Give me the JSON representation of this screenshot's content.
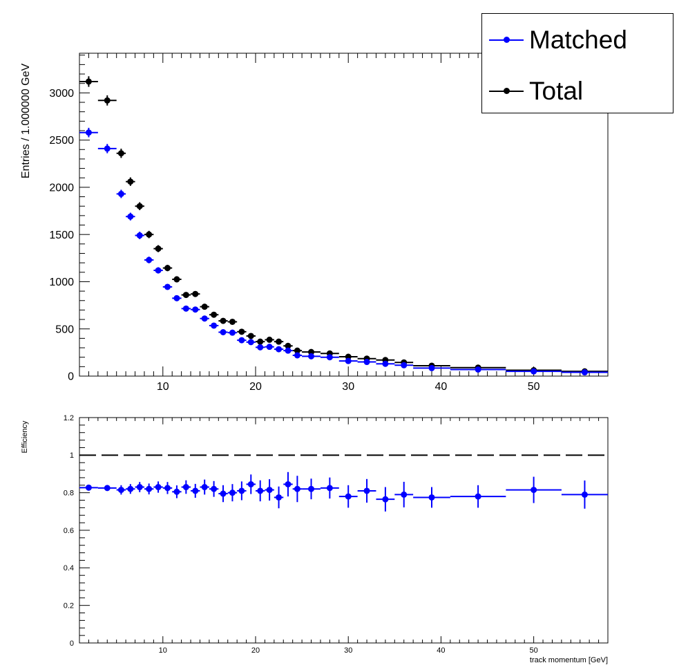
{
  "chart_data": [
    {
      "type": "scatter",
      "panel": "top",
      "title": "",
      "xlabel": "",
      "ylabel": "Entries / 1.000000 GeV",
      "xlim": [
        1,
        58
      ],
      "ylim": [
        0,
        3420
      ],
      "x_ticks": [
        10,
        20,
        30,
        40,
        50
      ],
      "y_ticks": [
        0,
        500,
        1000,
        1500,
        2000,
        2500,
        3000
      ],
      "legend_position": "top-right",
      "colors": {
        "Matched": "#0000ff",
        "Total": "#000000"
      },
      "series": [
        {
          "name": "Matched",
          "points": [
            {
              "x": 2,
              "xerr": 1,
              "y": 2580,
              "yerr": 50
            },
            {
              "x": 4,
              "xerr": 1,
              "y": 2410,
              "yerr": 49
            },
            {
              "x": 5.5,
              "xerr": 0.5,
              "y": 1930,
              "yerr": 44
            },
            {
              "x": 6.5,
              "xerr": 0.5,
              "y": 1690,
              "yerr": 41
            },
            {
              "x": 7.5,
              "xerr": 0.5,
              "y": 1490,
              "yerr": 39
            },
            {
              "x": 8.5,
              "xerr": 0.5,
              "y": 1230,
              "yerr": 35
            },
            {
              "x": 9.5,
              "xerr": 0.5,
              "y": 1120,
              "yerr": 33
            },
            {
              "x": 10.5,
              "xerr": 0.5,
              "y": 945,
              "yerr": 31
            },
            {
              "x": 11.5,
              "xerr": 0.5,
              "y": 825,
              "yerr": 29
            },
            {
              "x": 12.5,
              "xerr": 0.5,
              "y": 715,
              "yerr": 27
            },
            {
              "x": 13.5,
              "xerr": 0.5,
              "y": 705,
              "yerr": 27
            },
            {
              "x": 14.5,
              "xerr": 0.5,
              "y": 610,
              "yerr": 25
            },
            {
              "x": 15.5,
              "xerr": 0.5,
              "y": 535,
              "yerr": 23
            },
            {
              "x": 16.5,
              "xerr": 0.5,
              "y": 465,
              "yerr": 22
            },
            {
              "x": 17.5,
              "xerr": 0.5,
              "y": 460,
              "yerr": 21
            },
            {
              "x": 18.5,
              "xerr": 0.5,
              "y": 380,
              "yerr": 19
            },
            {
              "x": 19.5,
              "xerr": 0.5,
              "y": 360,
              "yerr": 19
            },
            {
              "x": 20.5,
              "xerr": 0.5,
              "y": 305,
              "yerr": 17
            },
            {
              "x": 21.5,
              "xerr": 0.5,
              "y": 310,
              "yerr": 18
            },
            {
              "x": 22.5,
              "xerr": 0.5,
              "y": 285,
              "yerr": 17
            },
            {
              "x": 23.5,
              "xerr": 0.5,
              "y": 270,
              "yerr": 16
            },
            {
              "x": 24.5,
              "xerr": 0.5,
              "y": 220,
              "yerr": 15
            },
            {
              "x": 26,
              "xerr": 1,
              "y": 210,
              "yerr": 14
            },
            {
              "x": 28,
              "xerr": 1,
              "y": 200,
              "yerr": 14
            },
            {
              "x": 30,
              "xerr": 1,
              "y": 160,
              "yerr": 13
            },
            {
              "x": 32,
              "xerr": 1,
              "y": 150,
              "yerr": 12
            },
            {
              "x": 34,
              "xerr": 1,
              "y": 130,
              "yerr": 11
            },
            {
              "x": 36,
              "xerr": 1,
              "y": 115,
              "yerr": 11
            },
            {
              "x": 39,
              "xerr": 2,
              "y": 85,
              "yerr": 7
            },
            {
              "x": 44,
              "xerr": 3,
              "y": 70,
              "yerr": 5
            },
            {
              "x": 50,
              "xerr": 3,
              "y": 50,
              "yerr": 4
            },
            {
              "x": 55.5,
              "xerr": 2.5,
              "y": 40,
              "yerr": 4
            }
          ]
        },
        {
          "name": "Total",
          "points": [
            {
              "x": 2,
              "xerr": 1,
              "y": 3120,
              "yerr": 56
            },
            {
              "x": 4,
              "xerr": 1,
              "y": 2920,
              "yerr": 54
            },
            {
              "x": 5.5,
              "xerr": 0.5,
              "y": 2360,
              "yerr": 49
            },
            {
              "x": 6.5,
              "xerr": 0.5,
              "y": 2060,
              "yerr": 45
            },
            {
              "x": 7.5,
              "xerr": 0.5,
              "y": 1800,
              "yerr": 42
            },
            {
              "x": 8.5,
              "xerr": 0.5,
              "y": 1500,
              "yerr": 39
            },
            {
              "x": 9.5,
              "xerr": 0.5,
              "y": 1350,
              "yerr": 37
            },
            {
              "x": 10.5,
              "xerr": 0.5,
              "y": 1145,
              "yerr": 34
            },
            {
              "x": 11.5,
              "xerr": 0.5,
              "y": 1025,
              "yerr": 32
            },
            {
              "x": 12.5,
              "xerr": 0.5,
              "y": 860,
              "yerr": 29
            },
            {
              "x": 13.5,
              "xerr": 0.5,
              "y": 870,
              "yerr": 29
            },
            {
              "x": 14.5,
              "xerr": 0.5,
              "y": 735,
              "yerr": 27
            },
            {
              "x": 15.5,
              "xerr": 0.5,
              "y": 650,
              "yerr": 25
            },
            {
              "x": 16.5,
              "xerr": 0.5,
              "y": 585,
              "yerr": 24
            },
            {
              "x": 17.5,
              "xerr": 0.5,
              "y": 575,
              "yerr": 24
            },
            {
              "x": 18.5,
              "xerr": 0.5,
              "y": 470,
              "yerr": 22
            },
            {
              "x": 19.5,
              "xerr": 0.5,
              "y": 425,
              "yerr": 21
            },
            {
              "x": 20.5,
              "xerr": 0.5,
              "y": 365,
              "yerr": 19
            },
            {
              "x": 21.5,
              "xerr": 0.5,
              "y": 385,
              "yerr": 20
            },
            {
              "x": 22.5,
              "xerr": 0.5,
              "y": 365,
              "yerr": 19
            },
            {
              "x": 23.5,
              "xerr": 0.5,
              "y": 320,
              "yerr": 18
            },
            {
              "x": 24.5,
              "xerr": 0.5,
              "y": 270,
              "yerr": 16
            },
            {
              "x": 26,
              "xerr": 1,
              "y": 255,
              "yerr": 16
            },
            {
              "x": 28,
              "xerr": 1,
              "y": 240,
              "yerr": 15
            },
            {
              "x": 30,
              "xerr": 1,
              "y": 205,
              "yerr": 14
            },
            {
              "x": 32,
              "xerr": 1,
              "y": 185,
              "yerr": 14
            },
            {
              "x": 34,
              "xerr": 1,
              "y": 170,
              "yerr": 13
            },
            {
              "x": 36,
              "xerr": 1,
              "y": 145,
              "yerr": 12
            },
            {
              "x": 39,
              "xerr": 2,
              "y": 110,
              "yerr": 7
            },
            {
              "x": 44,
              "xerr": 3,
              "y": 90,
              "yerr": 5
            },
            {
              "x": 50,
              "xerr": 3,
              "y": 62,
              "yerr": 5
            },
            {
              "x": 55.5,
              "xerr": 2.5,
              "y": 50,
              "yerr": 4
            }
          ]
        }
      ]
    },
    {
      "type": "scatter",
      "panel": "bottom",
      "title": "",
      "xlabel": "track momentum [GeV]",
      "ylabel": "Efficiency",
      "xlim": [
        1,
        58
      ],
      "ylim": [
        0,
        1.2
      ],
      "x_ticks": [
        10,
        20,
        30,
        40,
        50
      ],
      "y_ticks": [
        0,
        0.2,
        0.4,
        0.6,
        0.8,
        1,
        1.2
      ],
      "y_tick_labels": [
        "0",
        "0.2",
        "0.4",
        "0.6",
        "0.8",
        "1",
        "1.2"
      ],
      "reference_line": {
        "y": 1,
        "style": "dashed"
      },
      "colors": {
        "Efficiency": "#0000ff"
      },
      "series": [
        {
          "name": "",
          "points": [
            {
              "x": 2,
              "xerr": 1,
              "y": 0.827,
              "yerr": 0.012
            },
            {
              "x": 4,
              "xerr": 1,
              "y": 0.825,
              "yerr": 0.012
            },
            {
              "x": 5.5,
              "xerr": 0.5,
              "y": 0.815,
              "yerr": 0.025
            },
            {
              "x": 6.5,
              "xerr": 0.5,
              "y": 0.82,
              "yerr": 0.026
            },
            {
              "x": 7.5,
              "xerr": 0.5,
              "y": 0.83,
              "yerr": 0.027
            },
            {
              "x": 8.5,
              "xerr": 0.5,
              "y": 0.82,
              "yerr": 0.029
            },
            {
              "x": 9.5,
              "xerr": 0.5,
              "y": 0.83,
              "yerr": 0.03
            },
            {
              "x": 10.5,
              "xerr": 0.5,
              "y": 0.825,
              "yerr": 0.032
            },
            {
              "x": 11.5,
              "xerr": 0.5,
              "y": 0.805,
              "yerr": 0.034
            },
            {
              "x": 12.5,
              "xerr": 0.5,
              "y": 0.83,
              "yerr": 0.036
            },
            {
              "x": 13.5,
              "xerr": 0.5,
              "y": 0.81,
              "yerr": 0.037
            },
            {
              "x": 14.5,
              "xerr": 0.5,
              "y": 0.83,
              "yerr": 0.04
            },
            {
              "x": 15.5,
              "xerr": 0.5,
              "y": 0.82,
              "yerr": 0.042
            },
            {
              "x": 16.5,
              "xerr": 0.5,
              "y": 0.795,
              "yerr": 0.045
            },
            {
              "x": 17.5,
              "xerr": 0.5,
              "y": 0.8,
              "yerr": 0.046
            },
            {
              "x": 18.5,
              "xerr": 0.5,
              "y": 0.81,
              "yerr": 0.05
            },
            {
              "x": 19.5,
              "xerr": 0.5,
              "y": 0.845,
              "yerr": 0.052
            },
            {
              "x": 20.5,
              "xerr": 0.5,
              "y": 0.81,
              "yerr": 0.056
            },
            {
              "x": 21.5,
              "xerr": 0.5,
              "y": 0.815,
              "yerr": 0.057
            },
            {
              "x": 22.5,
              "xerr": 0.5,
              "y": 0.775,
              "yerr": 0.058
            },
            {
              "x": 23.5,
              "xerr": 0.5,
              "y": 0.845,
              "yerr": 0.065
            },
            {
              "x": 24.5,
              "xerr": 0.5,
              "y": 0.82,
              "yerr": 0.07
            },
            {
              "x": 26,
              "xerr": 1,
              "y": 0.82,
              "yerr": 0.055
            },
            {
              "x": 28,
              "xerr": 1,
              "y": 0.825,
              "yerr": 0.056
            },
            {
              "x": 30,
              "xerr": 1,
              "y": 0.78,
              "yerr": 0.06
            },
            {
              "x": 32,
              "xerr": 1,
              "y": 0.81,
              "yerr": 0.063
            },
            {
              "x": 34,
              "xerr": 1,
              "y": 0.765,
              "yerr": 0.065
            },
            {
              "x": 36,
              "xerr": 1,
              "y": 0.79,
              "yerr": 0.068
            },
            {
              "x": 39,
              "xerr": 2,
              "y": 0.775,
              "yerr": 0.055
            },
            {
              "x": 44,
              "xerr": 3,
              "y": 0.78,
              "yerr": 0.06
            },
            {
              "x": 50,
              "xerr": 3,
              "y": 0.815,
              "yerr": 0.07
            },
            {
              "x": 55.5,
              "xerr": 2.5,
              "y": 0.79,
              "yerr": 0.075
            }
          ]
        }
      ]
    }
  ]
}
